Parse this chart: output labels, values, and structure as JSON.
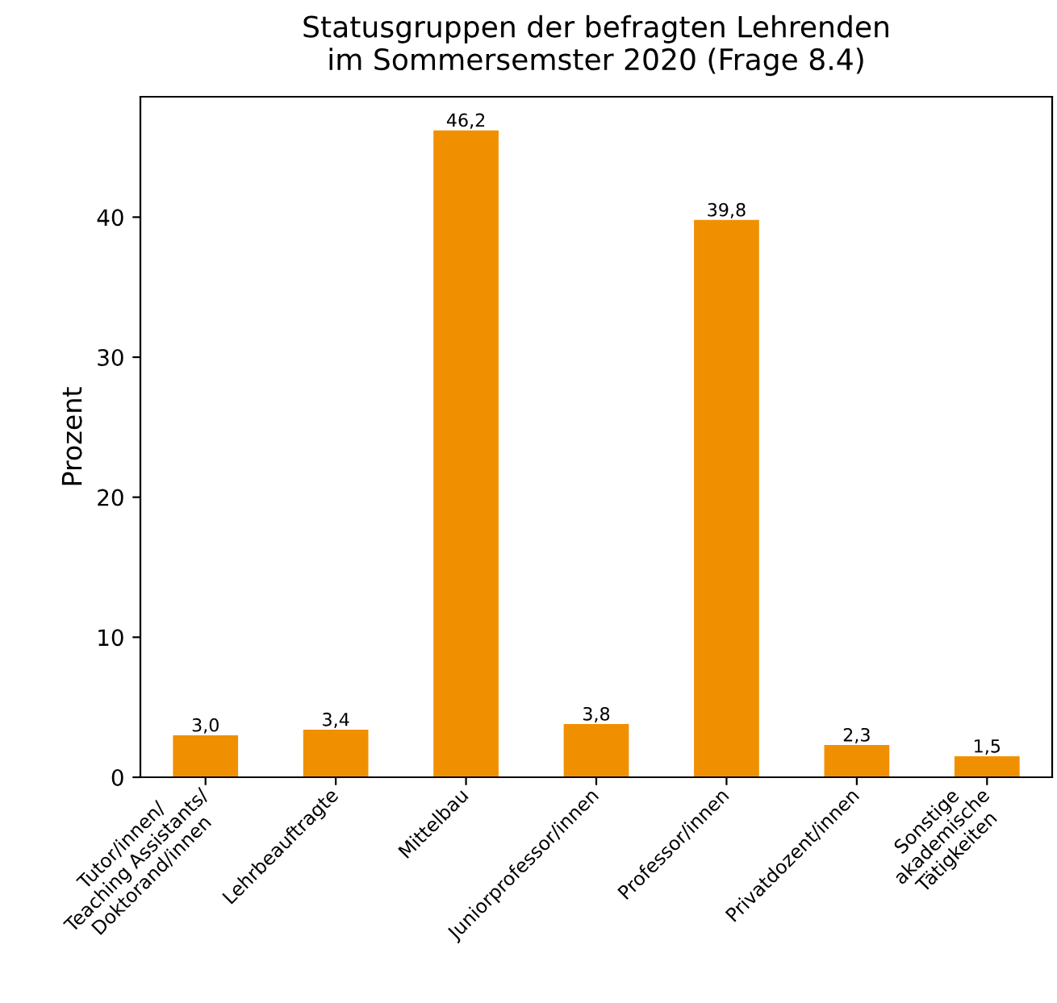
{
  "chart_data": {
    "type": "bar",
    "title": "Statusgruppen der befragten Lehrenden\nim Sommersemster 2020 (Frage 8.4)",
    "ylabel": "Prozent",
    "categories": [
      "Tutor/innen/\nTeaching Assistants/\nDoktorand/innen",
      "Lehrbeauftragte",
      "Mittelbau",
      "Juniorprofessor/innen",
      "Professor/innen",
      "Privatdozent/innen",
      "Sonstige\nakademische\nTätigkeiten"
    ],
    "values": [
      3.0,
      3.4,
      46.2,
      3.8,
      39.8,
      2.3,
      1.5
    ],
    "value_labels": [
      "3,0",
      "3,4",
      "46,2",
      "3,8",
      "39,8",
      "2,3",
      "1,5"
    ],
    "color": "#f09000",
    "ylim": [
      0,
      48.6
    ],
    "yticks": [
      0,
      10,
      20,
      30,
      40
    ],
    "grid": false,
    "legend": false
  }
}
